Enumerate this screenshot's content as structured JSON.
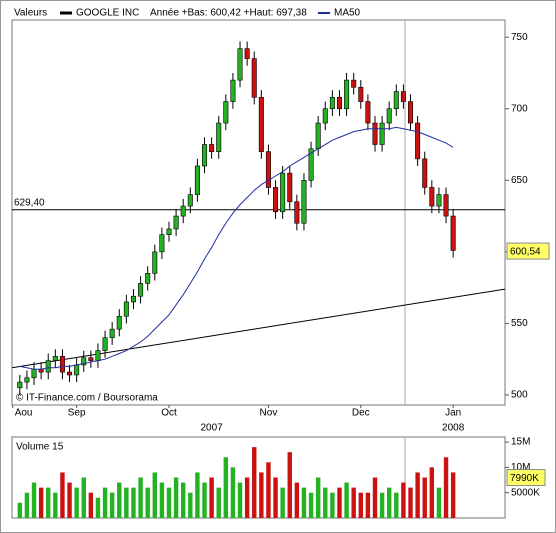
{
  "chart_data": {
    "type": "candlestick",
    "header": {
      "label": "Valeurs",
      "name": "GOOGLE INC",
      "range": "Année +Bas: 600,42 +Haut: 697,38",
      "ma_name": "MA50"
    },
    "credit": "© IT-Finance.com / Boursorama",
    "color_up": "#22b222",
    "color_down": "#cc1111",
    "ma_color": "#1f2fa0",
    "xlim": [
      -1.1,
      68.3
    ],
    "xticks": [
      {
        "value": -1,
        "label": "Aou"
      },
      {
        "value": 8,
        "label": "Sep"
      },
      {
        "value": 21,
        "label": "Oct"
      },
      {
        "value": 35,
        "label": "Nov"
      },
      {
        "value": 48,
        "label": "Dec"
      },
      {
        "value": 61,
        "label": "Jan"
      }
    ],
    "year_ticks": [
      {
        "value": 27,
        "label": "2007"
      },
      {
        "value": 61,
        "label": "2008"
      }
    ],
    "ylim": [
      493,
      762
    ],
    "yticks": [
      500,
      550,
      600,
      650,
      700,
      750
    ],
    "open": [
      505,
      509,
      512,
      518,
      516,
      524,
      527,
      516,
      514,
      521,
      526,
      524,
      531,
      540,
      546,
      555,
      565,
      569,
      578,
      585,
      600,
      612,
      616,
      625,
      632,
      640,
      660,
      675,
      670,
      690,
      705,
      720,
      742,
      735,
      708,
      670,
      645,
      628,
      655,
      635,
      620,
      650,
      672,
      690,
      700,
      708,
      700,
      720,
      715,
      705,
      690,
      675,
      690,
      700,
      712,
      705,
      690,
      665,
      645,
      632,
      640,
      625
    ],
    "high": [
      514,
      517,
      523,
      523,
      529,
      532,
      532,
      521,
      526,
      531,
      531,
      536,
      545,
      551,
      560,
      570,
      574,
      583,
      590,
      605,
      617,
      621,
      630,
      637,
      645,
      665,
      680,
      680,
      695,
      710,
      725,
      747,
      747,
      740,
      713,
      675,
      650,
      660,
      660,
      640,
      655,
      677,
      695,
      705,
      713,
      713,
      725,
      725,
      720,
      710,
      695,
      695,
      705,
      717,
      717,
      710,
      695,
      670,
      650,
      645,
      645,
      630
    ],
    "low": [
      500,
      504,
      507,
      511,
      511,
      519,
      511,
      509,
      509,
      516,
      519,
      519,
      526,
      535,
      541,
      550,
      560,
      564,
      573,
      580,
      595,
      607,
      611,
      620,
      627,
      635,
      655,
      665,
      665,
      685,
      700,
      715,
      730,
      703,
      665,
      640,
      623,
      623,
      630,
      615,
      615,
      645,
      667,
      685,
      695,
      695,
      695,
      710,
      700,
      685,
      670,
      670,
      685,
      695,
      700,
      685,
      660,
      640,
      627,
      627,
      620,
      596
    ],
    "close": [
      509,
      512,
      518,
      516,
      524,
      527,
      516,
      514,
      521,
      526,
      524,
      531,
      540,
      546,
      555,
      565,
      569,
      578,
      585,
      600,
      612,
      616,
      625,
      632,
      640,
      660,
      675,
      670,
      690,
      705,
      720,
      742,
      735,
      708,
      670,
      645,
      628,
      655,
      635,
      620,
      650,
      672,
      690,
      700,
      708,
      700,
      720,
      715,
      705,
      690,
      675,
      690,
      700,
      712,
      705,
      690,
      665,
      645,
      632,
      640,
      625,
      601
    ],
    "ma50": [
      520,
      519,
      518,
      518,
      519,
      519,
      520,
      520,
      521,
      522,
      523,
      524,
      525,
      527,
      529,
      531,
      534,
      537,
      541,
      546,
      551,
      556,
      563,
      570,
      578,
      586,
      595,
      603,
      612,
      620,
      627,
      633,
      638,
      643,
      647,
      650,
      653,
      656,
      660,
      663,
      666,
      669,
      672,
      675,
      678,
      680,
      682,
      684,
      685,
      686,
      686,
      686,
      686,
      687,
      686,
      685,
      684,
      682,
      680,
      678,
      676,
      673
    ],
    "trendline": {
      "x": [
        -1.1,
        68.3
      ],
      "y": [
        519,
        574
      ]
    },
    "reference_line": {
      "value": 629.4,
      "label": "629,40"
    },
    "last_price": {
      "value": 600.54,
      "label": "600,54"
    },
    "volume": {
      "title": "Volume 15",
      "ylim": [
        0,
        16000000
      ],
      "yticks": [
        {
          "value": 5000000,
          "label": "5000K"
        },
        {
          "value": 10000000,
          "label": "10M"
        },
        {
          "value": 15000000,
          "label": "15M"
        }
      ],
      "marker": {
        "value": 7990000,
        "label": "7990K"
      },
      "values": [
        3000000,
        5000000,
        7000000,
        6000000,
        6000000,
        5000000,
        9000000,
        7000000,
        6000000,
        8000000,
        5000000,
        4000000,
        6000000,
        5000000,
        7000000,
        6000000,
        6000000,
        8000000,
        6000000,
        9000000,
        7000000,
        6000000,
        8000000,
        7000000,
        5000000,
        9000000,
        7000000,
        8000000,
        6000000,
        12000000,
        10000000,
        7000000,
        8000000,
        14000000,
        9000000,
        11000000,
        8000000,
        6000000,
        13000000,
        7000000,
        6000000,
        5000000,
        8000000,
        6000000,
        5000000,
        6000000,
        7000000,
        6000000,
        5000000,
        5000000,
        8000000,
        5000000,
        6000000,
        5000000,
        7000000,
        6000000,
        9000000,
        8000000,
        10000000,
        6000000,
        12000000,
        9000000
      ]
    }
  }
}
